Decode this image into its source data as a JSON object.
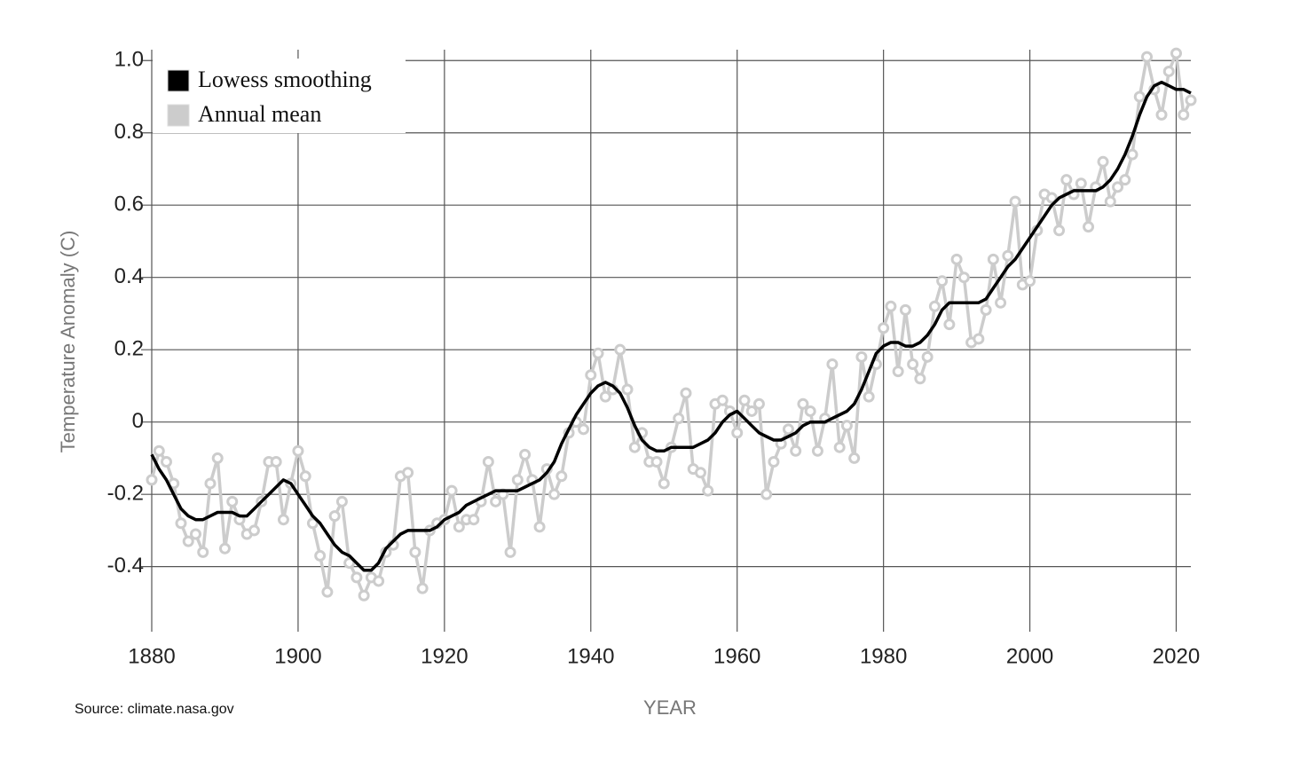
{
  "chart_data": {
    "type": "line",
    "ylabel": "Temperature Anomaly (C)",
    "xlabel": "YEAR",
    "source": "Source: climate.nasa.gov",
    "x": [
      1880,
      1881,
      1882,
      1883,
      1884,
      1885,
      1886,
      1887,
      1888,
      1889,
      1890,
      1891,
      1892,
      1893,
      1894,
      1895,
      1896,
      1897,
      1898,
      1899,
      1900,
      1901,
      1902,
      1903,
      1904,
      1905,
      1906,
      1907,
      1908,
      1909,
      1910,
      1911,
      1912,
      1913,
      1914,
      1915,
      1916,
      1917,
      1918,
      1919,
      1920,
      1921,
      1922,
      1923,
      1924,
      1925,
      1926,
      1927,
      1928,
      1929,
      1930,
      1931,
      1932,
      1933,
      1934,
      1935,
      1936,
      1937,
      1938,
      1939,
      1940,
      1941,
      1942,
      1943,
      1944,
      1945,
      1946,
      1947,
      1948,
      1949,
      1950,
      1951,
      1952,
      1953,
      1954,
      1955,
      1956,
      1957,
      1958,
      1959,
      1960,
      1961,
      1962,
      1963,
      1964,
      1965,
      1966,
      1967,
      1968,
      1969,
      1970,
      1971,
      1972,
      1973,
      1974,
      1975,
      1976,
      1977,
      1978,
      1979,
      1980,
      1981,
      1982,
      1983,
      1984,
      1985,
      1986,
      1987,
      1988,
      1989,
      1990,
      1991,
      1992,
      1993,
      1994,
      1995,
      1996,
      1997,
      1998,
      1999,
      2000,
      2001,
      2002,
      2003,
      2004,
      2005,
      2006,
      2007,
      2008,
      2009,
      2010,
      2011,
      2012,
      2013,
      2014,
      2015,
      2016,
      2017,
      2018,
      2019,
      2020,
      2021,
      2022
    ],
    "series": [
      {
        "name": "Lowess smoothing",
        "color": "#000000",
        "markers": false,
        "values": [
          -0.09,
          -0.13,
          -0.16,
          -0.2,
          -0.24,
          -0.26,
          -0.27,
          -0.27,
          -0.26,
          -0.25,
          -0.25,
          -0.25,
          -0.26,
          -0.26,
          -0.24,
          -0.22,
          -0.2,
          -0.18,
          -0.16,
          -0.17,
          -0.2,
          -0.23,
          -0.26,
          -0.28,
          -0.31,
          -0.34,
          -0.36,
          -0.37,
          -0.39,
          -0.41,
          -0.41,
          -0.39,
          -0.35,
          -0.33,
          -0.31,
          -0.3,
          -0.3,
          -0.3,
          -0.3,
          -0.29,
          -0.27,
          -0.26,
          -0.25,
          -0.23,
          -0.22,
          -0.21,
          -0.2,
          -0.19,
          -0.19,
          -0.19,
          -0.19,
          -0.18,
          -0.17,
          -0.16,
          -0.14,
          -0.11,
          -0.06,
          -0.02,
          0.02,
          0.05,
          0.08,
          0.1,
          0.11,
          0.1,
          0.08,
          0.04,
          -0.01,
          -0.05,
          -0.07,
          -0.08,
          -0.08,
          -0.07,
          -0.07,
          -0.07,
          -0.07,
          -0.06,
          -0.05,
          -0.03,
          0.0,
          0.02,
          0.03,
          0.01,
          -0.01,
          -0.03,
          -0.04,
          -0.05,
          -0.05,
          -0.04,
          -0.03,
          -0.01,
          0.0,
          0.0,
          0.0,
          0.01,
          0.02,
          0.03,
          0.05,
          0.09,
          0.14,
          0.19,
          0.21,
          0.22,
          0.22,
          0.21,
          0.21,
          0.22,
          0.24,
          0.27,
          0.31,
          0.33,
          0.33,
          0.33,
          0.33,
          0.33,
          0.34,
          0.37,
          0.4,
          0.43,
          0.45,
          0.48,
          0.51,
          0.54,
          0.57,
          0.6,
          0.62,
          0.63,
          0.64,
          0.64,
          0.64,
          0.64,
          0.65,
          0.67,
          0.7,
          0.74,
          0.79,
          0.85,
          0.9,
          0.93,
          0.94,
          0.93,
          0.92,
          0.92,
          0.91
        ]
      },
      {
        "name": "Annual mean",
        "color": "#cccccc",
        "markers": true,
        "values": [
          -0.16,
          -0.08,
          -0.11,
          -0.17,
          -0.28,
          -0.33,
          -0.31,
          -0.36,
          -0.17,
          -0.1,
          -0.35,
          -0.22,
          -0.27,
          -0.31,
          -0.3,
          -0.22,
          -0.11,
          -0.11,
          -0.27,
          -0.17,
          -0.08,
          -0.15,
          -0.28,
          -0.37,
          -0.47,
          -0.26,
          -0.22,
          -0.39,
          -0.43,
          -0.48,
          -0.43,
          -0.44,
          -0.36,
          -0.34,
          -0.15,
          -0.14,
          -0.36,
          -0.46,
          -0.3,
          -0.28,
          -0.27,
          -0.19,
          -0.29,
          -0.27,
          -0.27,
          -0.22,
          -0.11,
          -0.22,
          -0.2,
          -0.36,
          -0.16,
          -0.09,
          -0.16,
          -0.29,
          -0.13,
          -0.2,
          -0.15,
          -0.03,
          0.0,
          -0.02,
          0.13,
          0.19,
          0.07,
          0.09,
          0.2,
          0.09,
          -0.07,
          -0.03,
          -0.11,
          -0.11,
          -0.17,
          -0.07,
          0.01,
          0.08,
          -0.13,
          -0.14,
          -0.19,
          0.05,
          0.06,
          0.03,
          -0.03,
          0.06,
          0.03,
          0.05,
          -0.2,
          -0.11,
          -0.06,
          -0.02,
          -0.08,
          0.05,
          0.03,
          -0.08,
          0.01,
          0.16,
          -0.07,
          -0.01,
          -0.1,
          0.18,
          0.07,
          0.16,
          0.26,
          0.32,
          0.14,
          0.31,
          0.16,
          0.12,
          0.18,
          0.32,
          0.39,
          0.27,
          0.45,
          0.4,
          0.22,
          0.23,
          0.31,
          0.45,
          0.33,
          0.46,
          0.61,
          0.38,
          0.39,
          0.53,
          0.63,
          0.62,
          0.53,
          0.67,
          0.63,
          0.66,
          0.54,
          0.65,
          0.72,
          0.61,
          0.65,
          0.67,
          0.74,
          0.9,
          1.01,
          0.92,
          0.85,
          0.97,
          1.02,
          0.85,
          0.89
        ]
      }
    ],
    "xlim": [
      1880,
      2022
    ],
    "ylim": [
      -0.58,
      1.03
    ],
    "xticks": [
      1880,
      1900,
      1920,
      1940,
      1960,
      1980,
      2000,
      2020
    ],
    "yticks": [
      -0.4,
      -0.2,
      0,
      0.2,
      0.4,
      0.6,
      0.8,
      {
        "value": 1,
        "label": "1.0"
      }
    ],
    "grid": true,
    "legend": "upper left"
  }
}
